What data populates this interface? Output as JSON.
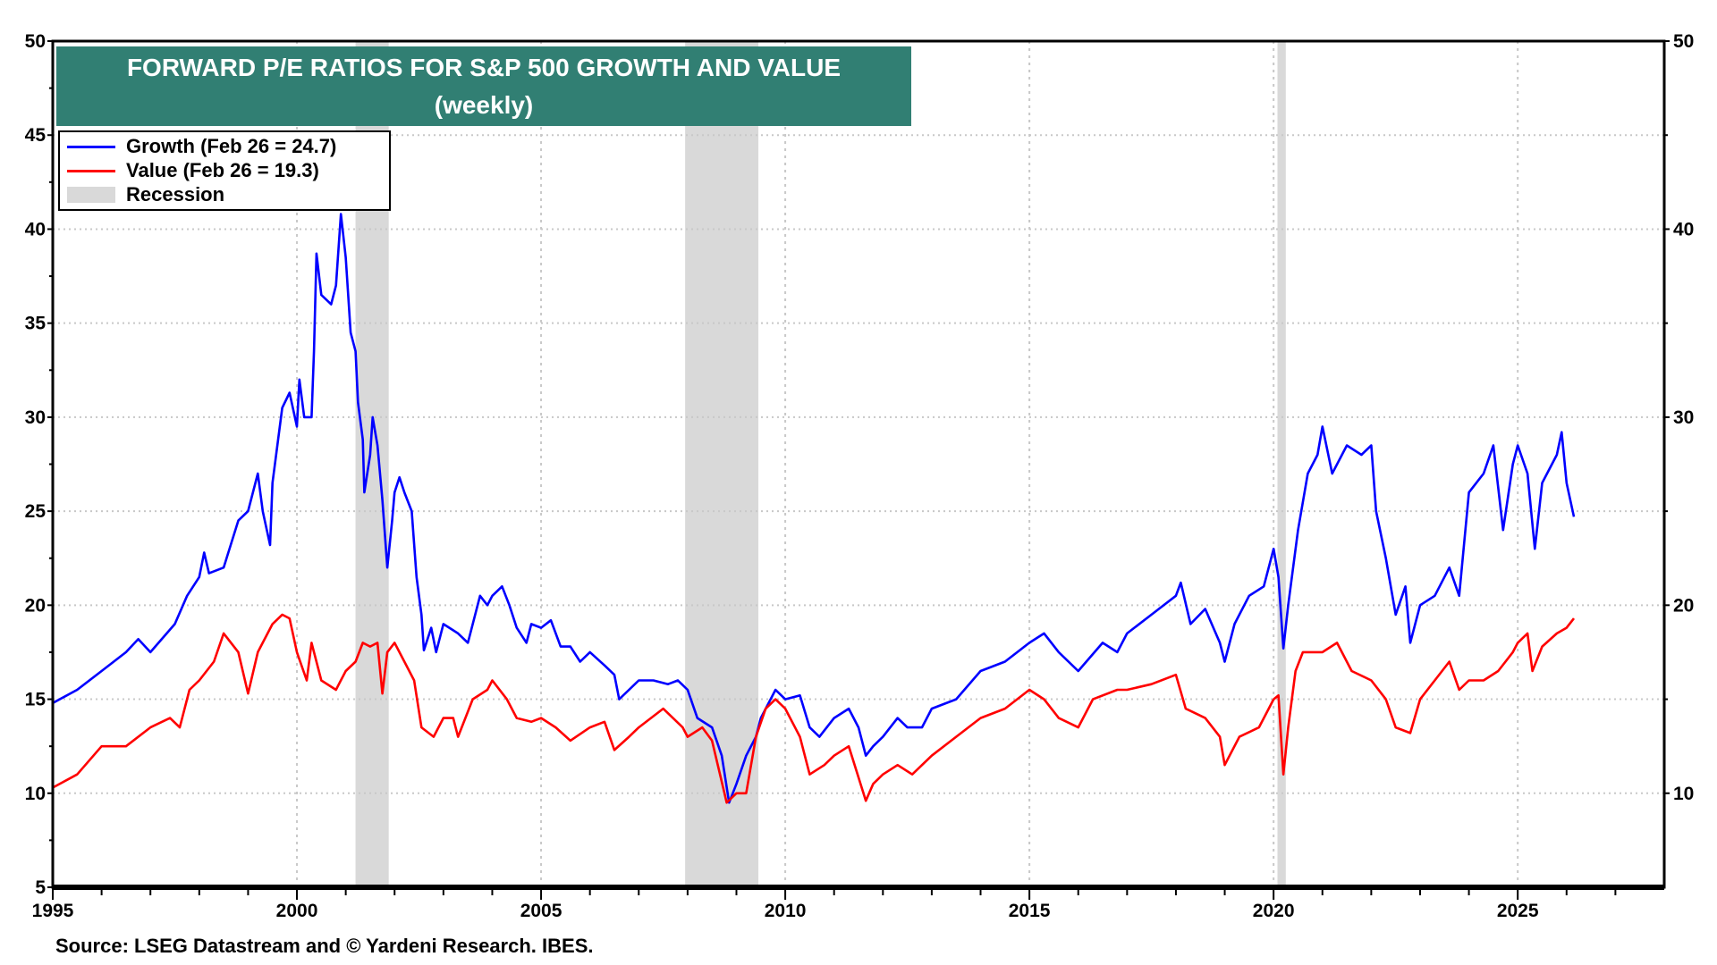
{
  "chart_data": {
    "type": "line",
    "title": "FORWARD P/E RATIOS FOR S&P 500 GROWTH AND VALUE",
    "subtitle": "(weekly)",
    "xlabel": "",
    "ylabel": "",
    "xlim": [
      1995,
      2028
    ],
    "ylim": [
      5,
      50
    ],
    "x_ticks": [
      "1995",
      "2000",
      "2005",
      "2010",
      "2015",
      "2020",
      "2025"
    ],
    "y_ticks": [
      "5",
      "10",
      "15",
      "20",
      "25",
      "30",
      "35",
      "40",
      "45",
      "50"
    ],
    "y_ticks_right": [
      "10",
      "20",
      "30",
      "40",
      "50"
    ],
    "grid": true,
    "legend_position": "top-left",
    "colors": {
      "growth": "#0000ff",
      "value": "#ff0000",
      "recession": "#d9d9d9",
      "title_bg": "#317f73"
    },
    "legend": [
      {
        "label": "Growth (Feb 26 = 24.7)",
        "key": "growth"
      },
      {
        "label": "Value (Feb 26 = 19.3)",
        "key": "value"
      },
      {
        "label": "Recession",
        "key": "recession"
      }
    ],
    "recessions": [
      [
        2001.2,
        2001.88
      ],
      [
        2007.95,
        2009.45
      ],
      [
        2020.08,
        2020.25
      ]
    ],
    "series": [
      {
        "name": "Growth",
        "key": "growth",
        "points": [
          [
            1995.0,
            14.8
          ],
          [
            1995.5,
            15.5
          ],
          [
            1996.0,
            16.5
          ],
          [
            1996.5,
            17.5
          ],
          [
            1996.75,
            18.2
          ],
          [
            1997.0,
            17.5
          ],
          [
            1997.5,
            19.0
          ],
          [
            1997.75,
            20.5
          ],
          [
            1998.0,
            21.5
          ],
          [
            1998.1,
            22.8
          ],
          [
            1998.2,
            21.7
          ],
          [
            1998.5,
            22.0
          ],
          [
            1998.8,
            24.5
          ],
          [
            1999.0,
            25.0
          ],
          [
            1999.2,
            27.0
          ],
          [
            1999.3,
            25.0
          ],
          [
            1999.45,
            23.2
          ],
          [
            1999.5,
            26.5
          ],
          [
            1999.7,
            30.5
          ],
          [
            1999.85,
            31.3
          ],
          [
            2000.0,
            29.5
          ],
          [
            2000.05,
            32.0
          ],
          [
            2000.15,
            30.0
          ],
          [
            2000.3,
            30.0
          ],
          [
            2000.35,
            33.5
          ],
          [
            2000.4,
            38.7
          ],
          [
            2000.5,
            36.5
          ],
          [
            2000.7,
            36.0
          ],
          [
            2000.8,
            37.0
          ],
          [
            2000.9,
            40.8
          ],
          [
            2001.0,
            38.5
          ],
          [
            2001.1,
            34.5
          ],
          [
            2001.2,
            33.5
          ],
          [
            2001.25,
            30.8
          ],
          [
            2001.35,
            28.8
          ],
          [
            2001.38,
            26.0
          ],
          [
            2001.5,
            28.0
          ],
          [
            2001.55,
            30.0
          ],
          [
            2001.65,
            28.5
          ],
          [
            2001.75,
            25.6
          ],
          [
            2001.85,
            22.0
          ],
          [
            2001.95,
            24.5
          ],
          [
            2002.0,
            26.0
          ],
          [
            2002.1,
            26.8
          ],
          [
            2002.2,
            26.0
          ],
          [
            2002.35,
            25.0
          ],
          [
            2002.45,
            21.5
          ],
          [
            2002.55,
            19.5
          ],
          [
            2002.6,
            17.6
          ],
          [
            2002.75,
            18.8
          ],
          [
            2002.85,
            17.5
          ],
          [
            2003.0,
            19.0
          ],
          [
            2003.3,
            18.5
          ],
          [
            2003.5,
            18.0
          ],
          [
            2003.75,
            20.5
          ],
          [
            2003.9,
            20.0
          ],
          [
            2004.0,
            20.5
          ],
          [
            2004.2,
            21.0
          ],
          [
            2004.35,
            20.0
          ],
          [
            2004.5,
            18.8
          ],
          [
            2004.7,
            18.0
          ],
          [
            2004.8,
            19.0
          ],
          [
            2005.0,
            18.8
          ],
          [
            2005.2,
            19.2
          ],
          [
            2005.4,
            17.8
          ],
          [
            2005.6,
            17.8
          ],
          [
            2005.8,
            17.0
          ],
          [
            2006.0,
            17.5
          ],
          [
            2006.3,
            16.8
          ],
          [
            2006.5,
            16.3
          ],
          [
            2006.6,
            15.0
          ],
          [
            2006.8,
            15.5
          ],
          [
            2007.0,
            16.0
          ],
          [
            2007.3,
            16.0
          ],
          [
            2007.6,
            15.8
          ],
          [
            2007.8,
            16.0
          ],
          [
            2008.0,
            15.5
          ],
          [
            2008.2,
            14.0
          ],
          [
            2008.5,
            13.5
          ],
          [
            2008.7,
            12.0
          ],
          [
            2008.85,
            9.5
          ],
          [
            2009.0,
            10.5
          ],
          [
            2009.2,
            12.0
          ],
          [
            2009.4,
            13.0
          ],
          [
            2009.5,
            14.0
          ],
          [
            2009.8,
            15.5
          ],
          [
            2010.0,
            15.0
          ],
          [
            2010.3,
            15.2
          ],
          [
            2010.5,
            13.5
          ],
          [
            2010.7,
            13.0
          ],
          [
            2011.0,
            14.0
          ],
          [
            2011.3,
            14.5
          ],
          [
            2011.5,
            13.5
          ],
          [
            2011.65,
            12.0
          ],
          [
            2011.8,
            12.5
          ],
          [
            2012.0,
            13.0
          ],
          [
            2012.3,
            14.0
          ],
          [
            2012.5,
            13.5
          ],
          [
            2012.8,
            13.5
          ],
          [
            2013.0,
            14.5
          ],
          [
            2013.5,
            15.0
          ],
          [
            2014.0,
            16.5
          ],
          [
            2014.5,
            17.0
          ],
          [
            2015.0,
            18.0
          ],
          [
            2015.3,
            18.5
          ],
          [
            2015.6,
            17.5
          ],
          [
            2016.0,
            16.5
          ],
          [
            2016.5,
            18.0
          ],
          [
            2016.8,
            17.5
          ],
          [
            2017.0,
            18.5
          ],
          [
            2017.5,
            19.5
          ],
          [
            2018.0,
            20.5
          ],
          [
            2018.1,
            21.2
          ],
          [
            2018.3,
            19.0
          ],
          [
            2018.6,
            19.8
          ],
          [
            2018.9,
            18.0
          ],
          [
            2019.0,
            17.0
          ],
          [
            2019.2,
            19.0
          ],
          [
            2019.5,
            20.5
          ],
          [
            2019.8,
            21.0
          ],
          [
            2020.0,
            23.0
          ],
          [
            2020.1,
            21.5
          ],
          [
            2020.2,
            17.7
          ],
          [
            2020.3,
            20.0
          ],
          [
            2020.5,
            24.0
          ],
          [
            2020.7,
            27.0
          ],
          [
            2020.9,
            28.0
          ],
          [
            2021.0,
            29.5
          ],
          [
            2021.2,
            27.0
          ],
          [
            2021.5,
            28.5
          ],
          [
            2021.8,
            28.0
          ],
          [
            2022.0,
            28.5
          ],
          [
            2022.1,
            25.0
          ],
          [
            2022.3,
            22.5
          ],
          [
            2022.5,
            19.5
          ],
          [
            2022.7,
            21.0
          ],
          [
            2022.8,
            18.0
          ],
          [
            2023.0,
            20.0
          ],
          [
            2023.3,
            20.5
          ],
          [
            2023.6,
            22.0
          ],
          [
            2023.8,
            20.5
          ],
          [
            2024.0,
            26.0
          ],
          [
            2024.3,
            27.0
          ],
          [
            2024.5,
            28.5
          ],
          [
            2024.7,
            24.0
          ],
          [
            2024.9,
            27.5
          ],
          [
            2025.0,
            28.5
          ],
          [
            2025.2,
            27.0
          ],
          [
            2025.35,
            23.0
          ],
          [
            2025.5,
            26.5
          ],
          [
            2025.8,
            28.0
          ],
          [
            2025.9,
            29.2
          ],
          [
            2026.0,
            26.5
          ],
          [
            2026.15,
            24.7
          ]
        ]
      },
      {
        "name": "Value",
        "key": "value",
        "points": [
          [
            1995.0,
            10.3
          ],
          [
            1995.5,
            11.0
          ],
          [
            1996.0,
            12.5
          ],
          [
            1996.5,
            12.5
          ],
          [
            1997.0,
            13.5
          ],
          [
            1997.4,
            14.0
          ],
          [
            1997.6,
            13.5
          ],
          [
            1997.8,
            15.5
          ],
          [
            1998.0,
            16.0
          ],
          [
            1998.3,
            17.0
          ],
          [
            1998.5,
            18.5
          ],
          [
            1998.8,
            17.5
          ],
          [
            1999.0,
            15.3
          ],
          [
            1999.2,
            17.5
          ],
          [
            1999.5,
            19.0
          ],
          [
            1999.7,
            19.5
          ],
          [
            1999.85,
            19.3
          ],
          [
            2000.0,
            17.5
          ],
          [
            2000.2,
            16.0
          ],
          [
            2000.3,
            18.0
          ],
          [
            2000.5,
            16.0
          ],
          [
            2000.8,
            15.5
          ],
          [
            2001.0,
            16.5
          ],
          [
            2001.2,
            17.0
          ],
          [
            2001.35,
            18.0
          ],
          [
            2001.5,
            17.8
          ],
          [
            2001.65,
            18.0
          ],
          [
            2001.75,
            15.3
          ],
          [
            2001.85,
            17.5
          ],
          [
            2002.0,
            18.0
          ],
          [
            2002.2,
            17.0
          ],
          [
            2002.4,
            16.0
          ],
          [
            2002.55,
            13.5
          ],
          [
            2002.8,
            13.0
          ],
          [
            2003.0,
            14.0
          ],
          [
            2003.2,
            14.0
          ],
          [
            2003.3,
            13.0
          ],
          [
            2003.6,
            15.0
          ],
          [
            2003.9,
            15.5
          ],
          [
            2004.0,
            16.0
          ],
          [
            2004.3,
            15.0
          ],
          [
            2004.5,
            14.0
          ],
          [
            2004.8,
            13.8
          ],
          [
            2005.0,
            14.0
          ],
          [
            2005.3,
            13.5
          ],
          [
            2005.6,
            12.8
          ],
          [
            2006.0,
            13.5
          ],
          [
            2006.3,
            13.8
          ],
          [
            2006.5,
            12.3
          ],
          [
            2006.8,
            13.0
          ],
          [
            2007.0,
            13.5
          ],
          [
            2007.5,
            14.5
          ],
          [
            2007.9,
            13.5
          ],
          [
            2008.0,
            13.0
          ],
          [
            2008.3,
            13.5
          ],
          [
            2008.5,
            12.8
          ],
          [
            2008.8,
            9.5
          ],
          [
            2009.0,
            10.0
          ],
          [
            2009.2,
            10.0
          ],
          [
            2009.4,
            13.0
          ],
          [
            2009.6,
            14.5
          ],
          [
            2009.8,
            15.0
          ],
          [
            2010.0,
            14.5
          ],
          [
            2010.3,
            13.0
          ],
          [
            2010.5,
            11.0
          ],
          [
            2010.8,
            11.5
          ],
          [
            2011.0,
            12.0
          ],
          [
            2011.3,
            12.5
          ],
          [
            2011.65,
            9.6
          ],
          [
            2011.8,
            10.5
          ],
          [
            2012.0,
            11.0
          ],
          [
            2012.3,
            11.5
          ],
          [
            2012.6,
            11.0
          ],
          [
            2013.0,
            12.0
          ],
          [
            2013.5,
            13.0
          ],
          [
            2014.0,
            14.0
          ],
          [
            2014.5,
            14.5
          ],
          [
            2015.0,
            15.5
          ],
          [
            2015.3,
            15.0
          ],
          [
            2015.6,
            14.0
          ],
          [
            2016.0,
            13.5
          ],
          [
            2016.3,
            15.0
          ],
          [
            2016.8,
            15.5
          ],
          [
            2017.0,
            15.5
          ],
          [
            2017.5,
            15.8
          ],
          [
            2018.0,
            16.3
          ],
          [
            2018.2,
            14.5
          ],
          [
            2018.6,
            14.0
          ],
          [
            2018.9,
            13.0
          ],
          [
            2019.0,
            11.5
          ],
          [
            2019.3,
            13.0
          ],
          [
            2019.7,
            13.5
          ],
          [
            2020.0,
            15.0
          ],
          [
            2020.1,
            15.2
          ],
          [
            2020.2,
            11.0
          ],
          [
            2020.3,
            13.5
          ],
          [
            2020.45,
            16.5
          ],
          [
            2020.6,
            17.5
          ],
          [
            2021.0,
            17.5
          ],
          [
            2021.3,
            18.0
          ],
          [
            2021.6,
            16.5
          ],
          [
            2022.0,
            16.0
          ],
          [
            2022.3,
            15.0
          ],
          [
            2022.5,
            13.5
          ],
          [
            2022.8,
            13.2
          ],
          [
            2023.0,
            15.0
          ],
          [
            2023.3,
            16.0
          ],
          [
            2023.6,
            17.0
          ],
          [
            2023.8,
            15.5
          ],
          [
            2024.0,
            16.0
          ],
          [
            2024.3,
            16.0
          ],
          [
            2024.6,
            16.5
          ],
          [
            2024.9,
            17.5
          ],
          [
            2025.0,
            18.0
          ],
          [
            2025.2,
            18.5
          ],
          [
            2025.3,
            16.5
          ],
          [
            2025.5,
            17.8
          ],
          [
            2025.8,
            18.5
          ],
          [
            2026.0,
            18.8
          ],
          [
            2026.15,
            19.3
          ]
        ]
      }
    ],
    "source": "Source: LSEG Datastream and © Yardeni Research. IBES."
  }
}
